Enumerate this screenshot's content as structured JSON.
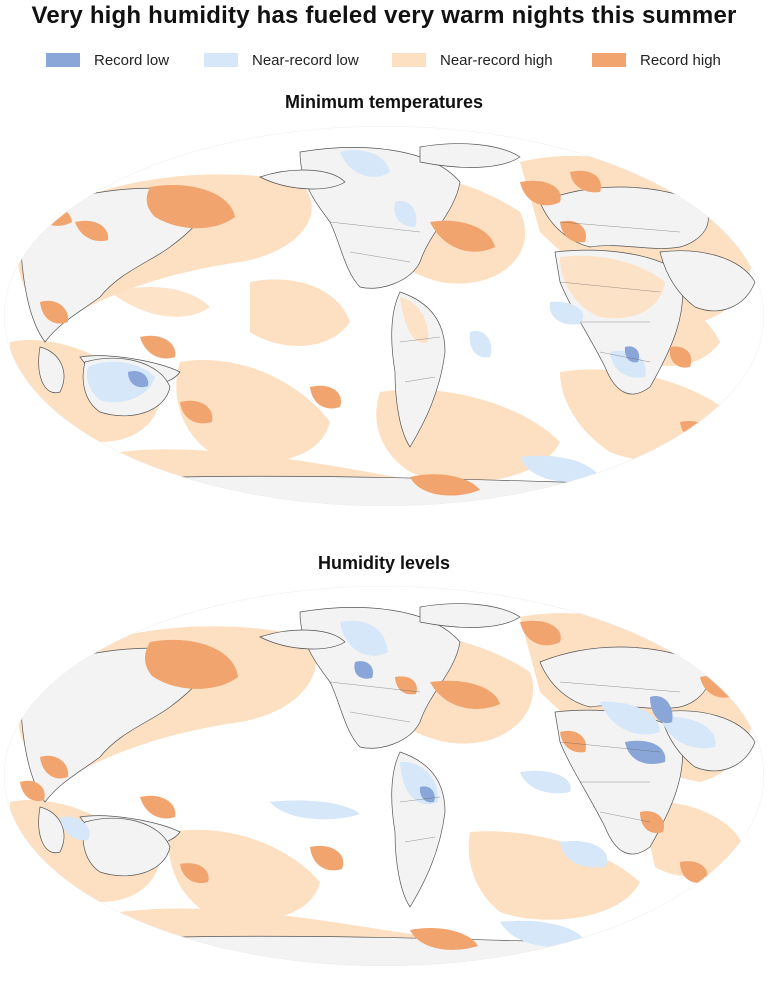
{
  "title": "Very high humidity has fueled very warm nights this summer",
  "legend": [
    {
      "label": "Record low",
      "color": "#8aa6d9"
    },
    {
      "label": "Near-record low",
      "color": "#d5e7f8"
    },
    {
      "label": "Near-record high",
      "color": "#fde0c2"
    },
    {
      "label": "Record high",
      "color": "#f2a46e"
    }
  ],
  "colors": {
    "ocean_base": "#ffffff",
    "land_base": "#f3f3f3",
    "border": "#555555",
    "record_low": "#8aa6d9",
    "near_record_low": "#d5e7f8",
    "near_record_high": "#fde0c2",
    "record_high": "#f2a46e"
  },
  "maps": [
    {
      "title": "Minimum temperatures",
      "projection": "Robinson-like world map, Pacific-centered"
    },
    {
      "title": "Humidity levels",
      "projection": "Robinson-like world map, Pacific-centered"
    }
  ]
}
